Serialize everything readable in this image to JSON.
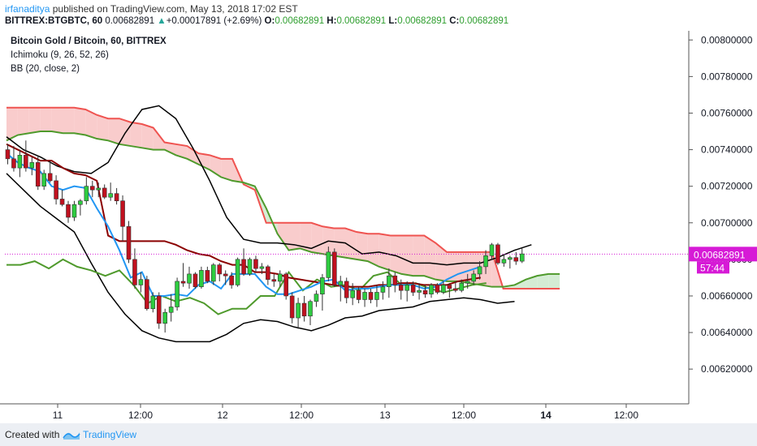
{
  "header": {
    "user": "irfanaditya",
    "published_text": "published on TradingView.com, May 13, 2018 17:02 EST",
    "symbol": "BITTREX:BTGBTC, 60",
    "price": "0.00682891",
    "change": "+0.00017891 (+2.69%)",
    "o_label": "O:",
    "o_value": "0.00682891",
    "h_label": "H:",
    "h_value": "0.00682891",
    "l_label": "L:",
    "l_value": "0.00682891",
    "c_label": "C:",
    "c_value": "0.00682891"
  },
  "legend": {
    "title": "Bitcoin Gold / Bitcoin, 60, BITTREX",
    "ind1": "Ichimoku (9, 26, 52, 26)",
    "ind2": "BB (20, close, 2)"
  },
  "footer": {
    "created": "Created with",
    "brand": "TradingView"
  },
  "colors": {
    "up": "#2ecc40",
    "down": "#c0111f",
    "cloud": "#f8c3c3",
    "cloud_green": "#cde9cd",
    "senkou_a": "#4f9a2c",
    "senkou_b": "#ef5350",
    "tenkan": "#2196f3",
    "kijun": "#8b0000",
    "chikou": "#4f9a2c",
    "bb": "#000000"
  },
  "chart_data": {
    "type": "candlestick",
    "title": "Bitcoin Gold / Bitcoin, 60, BITTREX",
    "y_ticks": [
      "0.00800000",
      "0.00780000",
      "0.00760000",
      "0.00740000",
      "0.00720000",
      "0.00700000",
      "0.00680000",
      "0.00660000",
      "0.00640000",
      "0.00620000"
    ],
    "x_ticks": [
      "11",
      "12:00",
      "12",
      "12:00",
      "13",
      "12:00",
      "14",
      "12:00"
    ],
    "ylim": [
      0.00601,
      0.00805
    ],
    "last_price_label": "0.00682891",
    "countdown_label": "57:44",
    "candles": [
      [
        0.0074,
        0.00743,
        0.00732,
        0.00735
      ],
      [
        0.00735,
        0.00742,
        0.00728,
        0.0073
      ],
      [
        0.0073,
        0.0074,
        0.00725,
        0.00737
      ],
      [
        0.00737,
        0.00745,
        0.00728,
        0.0073
      ],
      [
        0.0073,
        0.00736,
        0.00726,
        0.00733
      ],
      [
        0.00733,
        0.00737,
        0.00718,
        0.0072
      ],
      [
        0.0072,
        0.00729,
        0.00718,
        0.00727
      ],
      [
        0.00727,
        0.00734,
        0.00722,
        0.00723
      ],
      [
        0.00723,
        0.00726,
        0.0071,
        0.00713
      ],
      [
        0.00713,
        0.00718,
        0.00709,
        0.0071
      ],
      [
        0.0071,
        0.00712,
        0.007,
        0.00703
      ],
      [
        0.00703,
        0.00712,
        0.00701,
        0.0071
      ],
      [
        0.0071,
        0.00713,
        0.00704,
        0.00712
      ],
      [
        0.00712,
        0.00725,
        0.0071,
        0.0072
      ],
      [
        0.0072,
        0.00723,
        0.00714,
        0.00718
      ],
      [
        0.00718,
        0.00722,
        0.00714,
        0.00719
      ],
      [
        0.00719,
        0.00721,
        0.00713,
        0.00714
      ],
      [
        0.00714,
        0.00722,
        0.00712,
        0.00716
      ],
      [
        0.00716,
        0.00719,
        0.0071,
        0.00712
      ],
      [
        0.00712,
        0.00715,
        0.0069,
        0.00698
      ],
      [
        0.00698,
        0.00701,
        0.00678,
        0.0068
      ],
      [
        0.0068,
        0.00686,
        0.00664,
        0.00666
      ],
      [
        0.00666,
        0.00673,
        0.00662,
        0.00669
      ],
      [
        0.00669,
        0.00671,
        0.00652,
        0.00653
      ],
      [
        0.00653,
        0.00662,
        0.00651,
        0.0066
      ],
      [
        0.0066,
        0.00662,
        0.00642,
        0.00645
      ],
      [
        0.00645,
        0.00653,
        0.0064,
        0.00651
      ],
      [
        0.00651,
        0.00661,
        0.00646,
        0.00654
      ],
      [
        0.00654,
        0.0067,
        0.00652,
        0.00668
      ],
      [
        0.00668,
        0.00678,
        0.00665,
        0.00667
      ],
      [
        0.00667,
        0.00676,
        0.00664,
        0.00672
      ],
      [
        0.00672,
        0.00673,
        0.00664,
        0.00665
      ],
      [
        0.00665,
        0.00676,
        0.00664,
        0.00674
      ],
      [
        0.00674,
        0.00676,
        0.00667,
        0.00668
      ],
      [
        0.00668,
        0.00678,
        0.00666,
        0.00677
      ],
      [
        0.00677,
        0.00678,
        0.00668,
        0.00672
      ],
      [
        0.00672,
        0.00674,
        0.00666,
        0.00671
      ],
      [
        0.00671,
        0.00673,
        0.00664,
        0.00666
      ],
      [
        0.00666,
        0.00681,
        0.00665,
        0.0068
      ],
      [
        0.0068,
        0.00686,
        0.00671,
        0.00672
      ],
      [
        0.00672,
        0.00681,
        0.00671,
        0.0068
      ],
      [
        0.0068,
        0.00682,
        0.00673,
        0.00675
      ],
      [
        0.00675,
        0.00678,
        0.00672,
        0.00676
      ],
      [
        0.00676,
        0.00677,
        0.00666,
        0.00669
      ],
      [
        0.00669,
        0.00672,
        0.00665,
        0.00668
      ],
      [
        0.00668,
        0.00674,
        0.00665,
        0.00672
      ],
      [
        0.00672,
        0.00673,
        0.00658,
        0.0066
      ],
      [
        0.0066,
        0.00662,
        0.00645,
        0.00648
      ],
      [
        0.00648,
        0.00659,
        0.00642,
        0.00656
      ],
      [
        0.00656,
        0.0066,
        0.00646,
        0.00649
      ],
      [
        0.00649,
        0.00658,
        0.00644,
        0.00657
      ],
      [
        0.00657,
        0.00663,
        0.00654,
        0.00661
      ],
      [
        0.00661,
        0.00672,
        0.00652,
        0.0067
      ],
      [
        0.0067,
        0.00687,
        0.00668,
        0.00684
      ],
      [
        0.00684,
        0.00686,
        0.00665,
        0.00666
      ],
      [
        0.00666,
        0.00671,
        0.00657,
        0.00668
      ],
      [
        0.00668,
        0.0067,
        0.00656,
        0.00659
      ],
      [
        0.00659,
        0.00667,
        0.00655,
        0.00663
      ],
      [
        0.00663,
        0.00665,
        0.00656,
        0.00658
      ],
      [
        0.00658,
        0.00664,
        0.00654,
        0.00662
      ],
      [
        0.00662,
        0.00664,
        0.00656,
        0.00658
      ],
      [
        0.00658,
        0.00666,
        0.00654,
        0.00662
      ],
      [
        0.00662,
        0.00668,
        0.00658,
        0.00665
      ],
      [
        0.00665,
        0.00675,
        0.00659,
        0.00671
      ],
      [
        0.00671,
        0.00673,
        0.00662,
        0.00666
      ],
      [
        0.00666,
        0.00669,
        0.00658,
        0.00663
      ],
      [
        0.00663,
        0.00668,
        0.00657,
        0.00666
      ],
      [
        0.00666,
        0.00668,
        0.0066,
        0.00662
      ],
      [
        0.00662,
        0.00667,
        0.00658,
        0.00663
      ],
      [
        0.00663,
        0.00666,
        0.00659,
        0.00661
      ],
      [
        0.00661,
        0.00667,
        0.00659,
        0.00666
      ],
      [
        0.00666,
        0.00667,
        0.00661,
        0.00662
      ],
      [
        0.00662,
        0.00668,
        0.00661,
        0.00666
      ],
      [
        0.00666,
        0.00667,
        0.00659,
        0.00664
      ],
      [
        0.00664,
        0.00668,
        0.00662,
        0.00663
      ],
      [
        0.00663,
        0.00669,
        0.00662,
        0.00667
      ],
      [
        0.00667,
        0.00672,
        0.00664,
        0.00668
      ],
      [
        0.00668,
        0.00674,
        0.00666,
        0.00672
      ],
      [
        0.00672,
        0.00679,
        0.00669,
        0.00676
      ],
      [
        0.00676,
        0.00685,
        0.00672,
        0.00682
      ],
      [
        0.00682,
        0.00689,
        0.0068,
        0.00688
      ],
      [
        0.00688,
        0.00689,
        0.00677,
        0.00678
      ],
      [
        0.00678,
        0.00683,
        0.00676,
        0.0068
      ],
      [
        0.0068,
        0.00682,
        0.00675,
        0.00681
      ],
      [
        0.00681,
        0.00684,
        0.00677,
        0.00679
      ],
      [
        0.00679,
        0.00686,
        0.00678,
        0.00683
      ]
    ],
    "cloud_span_a": [
      0.00745,
      0.00748,
      0.00749,
      0.0075,
      0.0075,
      0.00749,
      0.00749,
      0.00748,
      0.00746,
      0.00745,
      0.00743,
      0.00742,
      0.00741,
      0.0074,
      0.0074,
      0.00737,
      0.00735,
      0.00732,
      0.00729,
      0.00725,
      0.00723,
      0.00722,
      0.0072,
      0.00708,
      0.00694,
      0.00685,
      0.00686,
      0.00684,
      0.00683,
      0.00682,
      0.00681,
      0.0068,
      0.00679,
      0.00676,
      0.00674,
      0.00672,
      0.00671,
      0.00671,
      0.00669,
      0.00668,
      0.00668,
      0.00667,
      0.00666,
      0.00665,
      0.00665,
      0.00666,
      0.00669,
      0.00671,
      0.00672,
      0.00672
    ],
    "cloud_span_b": [
      0.00763,
      0.00763,
      0.00763,
      0.00763,
      0.00763,
      0.00763,
      0.00763,
      0.00762,
      0.00759,
      0.00757,
      0.00757,
      0.00755,
      0.00754,
      0.00752,
      0.00744,
      0.00743,
      0.00742,
      0.00738,
      0.00737,
      0.00735,
      0.00735,
      0.00721,
      0.00718,
      0.007,
      0.007,
      0.007,
      0.007,
      0.007,
      0.00698,
      0.00697,
      0.00697,
      0.00695,
      0.00694,
      0.00694,
      0.00693,
      0.00693,
      0.00693,
      0.00693,
      0.00689,
      0.00684,
      0.00684,
      0.00684,
      0.00684,
      0.00684,
      0.00664,
      0.00664,
      0.00664,
      0.00664,
      0.00664,
      0.00664
    ],
    "tenkan": [
      0.00738,
      0.00733,
      0.0073,
      0.00728,
      0.0072,
      0.00718,
      0.0072,
      0.00719,
      0.00708,
      0.00698,
      0.00685,
      0.0067,
      0.00673,
      0.0066,
      0.0066,
      0.00661,
      0.0066,
      0.00666,
      0.00668,
      0.00664,
      0.00672,
      0.00672,
      0.00672,
      0.00665,
      0.00661,
      0.00661,
      0.00663,
      0.00665,
      0.00668,
      0.00669,
      0.00663,
      0.00664,
      0.00664,
      0.00665,
      0.00666,
      0.00666,
      0.00666,
      0.00664,
      0.00665,
      0.00669,
      0.00672,
      0.00674,
      0.00676
    ],
    "kijun": [
      0.00743,
      0.0074,
      0.00737,
      0.00734,
      0.00734,
      0.0073,
      0.00727,
      0.00726,
      0.00723,
      0.00693,
      0.0069,
      0.0069,
      0.0069,
      0.0069,
      0.0069,
      0.00688,
      0.00685,
      0.00683,
      0.00682,
      0.00679,
      0.00677,
      0.00677,
      0.00673,
      0.00673,
      0.00672,
      0.0067,
      0.00669,
      0.00668,
      0.00667,
      0.00666,
      0.00665,
      0.00665,
      0.00665,
      0.00666,
      0.00666,
      0.00667,
      0.00667,
      0.00666,
      0.00666,
      0.00666,
      0.00668,
      0.00669,
      0.0067
    ],
    "chikou": [
      0.00677,
      0.00677,
      0.00679,
      0.00675,
      0.0068,
      0.00676,
      0.00674,
      0.00671,
      0.00674,
      0.00666,
      0.00656,
      0.0066,
      0.00657,
      0.00659,
      0.00656,
      0.0065,
      0.00653,
      0.00653,
      0.0066,
      0.0066,
      0.00673,
      0.00663,
      0.00669,
      0.00665,
      0.00666,
      0.00663,
      0.00671,
      0.00673,
      0.00666,
      0.00667,
      0.00664,
      0.00662,
      0.00664,
      0.00666,
      0.00667
    ],
    "bb_upper": [
      0.00747,
      0.0074,
      0.00736,
      0.00731,
      0.00728,
      0.00727,
      0.00733,
      0.00749,
      0.00762,
      0.00764,
      0.00757,
      0.00741,
      0.00723,
      0.00703,
      0.00691,
      0.00689,
      0.00689,
      0.00688,
      0.00686,
      0.0069,
      0.00689,
      0.00683,
      0.00684,
      0.00682,
      0.00678,
      0.00678,
      0.00677,
      0.00678,
      0.00678,
      0.00681,
      0.00685,
      0.00688
    ],
    "bb_lower": [
      0.00727,
      0.00718,
      0.00709,
      0.00702,
      0.00695,
      0.00678,
      0.00662,
      0.0065,
      0.00641,
      0.00637,
      0.00635,
      0.00635,
      0.00635,
      0.00639,
      0.00645,
      0.00647,
      0.00646,
      0.00643,
      0.00641,
      0.00644,
      0.00648,
      0.00649,
      0.00652,
      0.00653,
      0.00654,
      0.00657,
      0.00658,
      0.00659,
      0.00658,
      0.00656,
      0.00657
    ],
    "bb_basis": [
      0.00733,
      0.00728,
      0.00724,
      0.00721,
      0.00718,
      0.00712,
      0.00706,
      0.00699,
      0.00693,
      0.00687,
      0.00681,
      0.00677,
      0.00674,
      0.00671,
      0.00669,
      0.00667,
      0.00666,
      0.00665,
      0.00664,
      0.00663,
      0.00663,
      0.00663,
      0.00663,
      0.00664,
      0.00666,
      0.00668,
      0.00671,
      0.00673,
      0.00676
    ]
  }
}
